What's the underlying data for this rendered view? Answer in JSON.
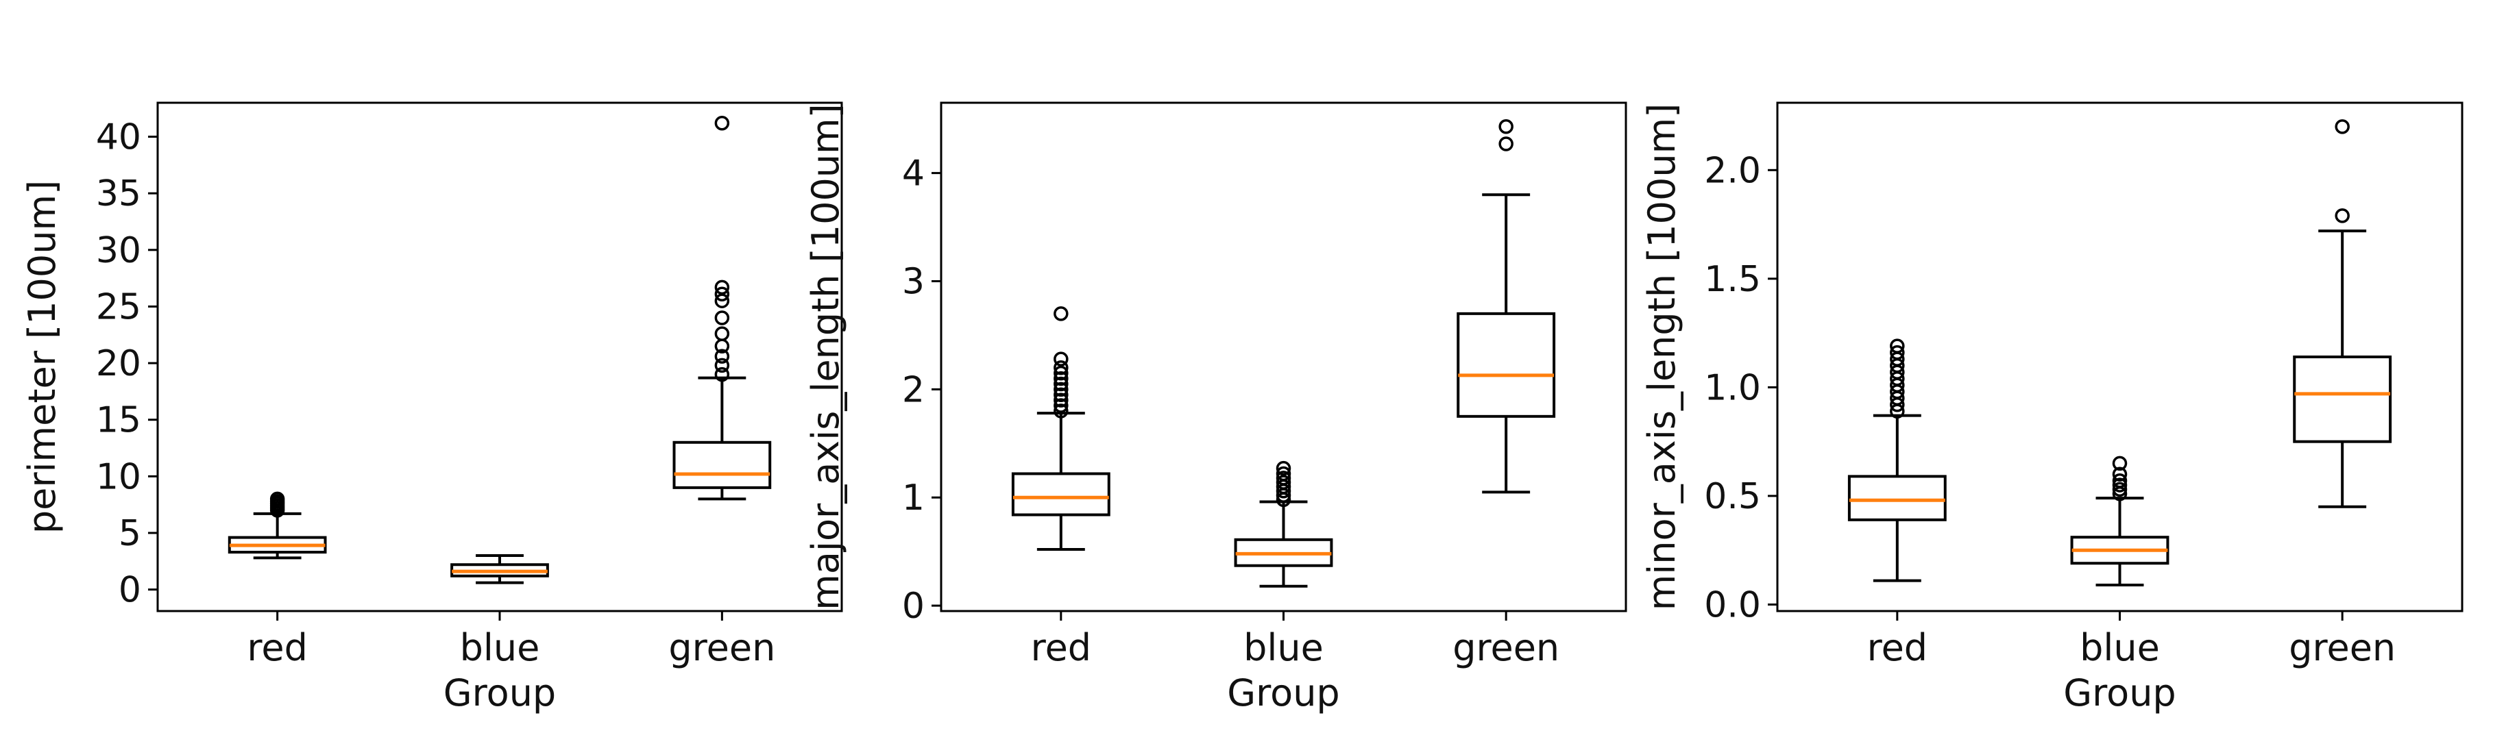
{
  "chart_data": [
    {
      "type": "box",
      "title": "",
      "xlabel": "Group",
      "ylabel": "perimeter [100um]",
      "ylim": [
        -1.9,
        43.0
      ],
      "yticks": [
        0,
        5,
        10,
        15,
        20,
        25,
        30,
        35,
        40
      ],
      "categories": [
        "red",
        "blue",
        "green"
      ],
      "boxes": [
        {
          "category": "red",
          "whislo": 2.8,
          "q1": 3.3,
          "med": 3.9,
          "q3": 4.6,
          "whishi": 6.7,
          "fliers": [
            7.0,
            7.2,
            7.4,
            7.6,
            7.8,
            8.0
          ]
        },
        {
          "category": "blue",
          "whislo": 0.6,
          "q1": 1.2,
          "med": 1.6,
          "q3": 2.2,
          "whishi": 3.0,
          "fliers": []
        },
        {
          "category": "green",
          "whislo": 8.0,
          "q1": 9.0,
          "med": 10.2,
          "q3": 13.0,
          "whishi": 18.7,
          "fliers": [
            19.0,
            19.8,
            20.6,
            21.5,
            22.6,
            24.0,
            25.5,
            26.1,
            26.7,
            41.2
          ]
        }
      ]
    },
    {
      "type": "box",
      "title": "",
      "xlabel": "Group",
      "ylabel": "major_axis_length [100um]",
      "ylim": [
        -0.05,
        4.65
      ],
      "yticks": [
        0,
        1,
        2,
        3,
        4
      ],
      "categories": [
        "red",
        "blue",
        "green"
      ],
      "boxes": [
        {
          "category": "red",
          "whislo": 0.52,
          "q1": 0.84,
          "med": 1.0,
          "q3": 1.22,
          "whishi": 1.78,
          "fliers": [
            1.8,
            1.85,
            1.9,
            1.95,
            2.0,
            2.05,
            2.1,
            2.15,
            2.2,
            2.28,
            2.7
          ]
        },
        {
          "category": "blue",
          "whislo": 0.18,
          "q1": 0.37,
          "med": 0.48,
          "q3": 0.61,
          "whishi": 0.96,
          "fliers": [
            0.98,
            1.02,
            1.06,
            1.1,
            1.14,
            1.18,
            1.22,
            1.27
          ]
        },
        {
          "category": "green",
          "whislo": 1.05,
          "q1": 1.75,
          "med": 2.13,
          "q3": 2.7,
          "whishi": 3.8,
          "fliers": [
            4.27,
            4.43
          ]
        }
      ]
    },
    {
      "type": "box",
      "title": "",
      "xlabel": "Group",
      "ylabel": "minor_axis_length [100um]",
      "ylim": [
        -0.03,
        2.31
      ],
      "yticks": [
        "0.0",
        "0.5",
        "1.0",
        "1.5",
        "2.0"
      ],
      "categories": [
        "red",
        "blue",
        "green"
      ],
      "boxes": [
        {
          "category": "red",
          "whislo": 0.11,
          "q1": 0.39,
          "med": 0.48,
          "q3": 0.59,
          "whishi": 0.87,
          "fliers": [
            0.89,
            0.92,
            0.95,
            0.98,
            1.01,
            1.04,
            1.07,
            1.1,
            1.13,
            1.16,
            1.19
          ]
        },
        {
          "category": "blue",
          "whislo": 0.09,
          "q1": 0.19,
          "med": 0.25,
          "q3": 0.31,
          "whishi": 0.49,
          "fliers": [
            0.51,
            0.53,
            0.55,
            0.57,
            0.6,
            0.65
          ]
        },
        {
          "category": "green",
          "whislo": 0.45,
          "q1": 0.75,
          "med": 0.97,
          "q3": 1.14,
          "whishi": 1.72,
          "fliers": [
            1.79,
            2.2
          ]
        }
      ]
    }
  ],
  "colors": {
    "box": "#000000",
    "median": "#ff7f0e",
    "frame": "#000000"
  }
}
